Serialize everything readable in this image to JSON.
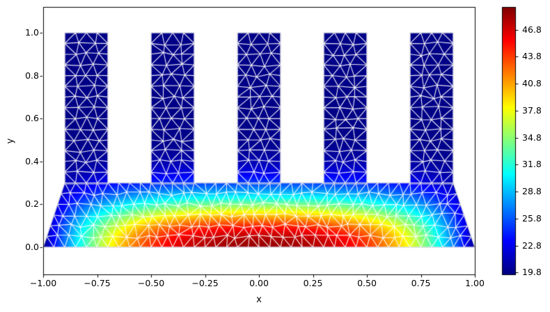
{
  "figure": {
    "background": "#ffffff"
  },
  "chart_data": {
    "type": "heatmap",
    "subtype": "triangular finite-element mesh with scalar field (tripcolor + triplot)",
    "title": "",
    "xlabel": "x",
    "ylabel": "y",
    "xlim": [
      -1.0,
      1.0
    ],
    "ylim": [
      -0.13,
      1.12
    ],
    "grid": false,
    "x_ticks": [
      -1.0,
      -0.75,
      -0.5,
      -0.25,
      0.0,
      0.25,
      0.5,
      0.75,
      1.0
    ],
    "x_tick_labels": [
      "−1.00",
      "−0.75",
      "−0.50",
      "−0.25",
      "0.00",
      "0.25",
      "0.50",
      "0.75",
      "1.00"
    ],
    "y_ticks": [
      0.0,
      0.2,
      0.4,
      0.6,
      0.8,
      1.0
    ],
    "y_tick_labels": [
      "0.0",
      "0.2",
      "0.4",
      "0.6",
      "0.8",
      "1.0"
    ],
    "colormap": "jet",
    "mesh_edge_color": "#ffffff",
    "boundary_edge_color": "#c8c8dc",
    "colorbar": {
      "position": "right",
      "vmin": 19.59,
      "vmax": 49.33,
      "ticks": [
        19.8,
        22.8,
        25.8,
        28.8,
        31.8,
        34.8,
        37.8,
        40.8,
        43.8,
        46.8
      ],
      "tick_labels": [
        "19.8",
        "22.8",
        "25.8",
        "28.8",
        "31.8",
        "34.8",
        "37.8",
        "40.8",
        "43.8",
        "46.8"
      ]
    },
    "geometry": {
      "description": "2-D heat-sink cross-section: trapezoidal base plate with five rectangular cooling fins",
      "base_polygon": [
        [
          -1.0,
          0.0
        ],
        [
          1.0,
          0.0
        ],
        [
          0.9,
          0.3
        ],
        [
          -0.9,
          0.3
        ]
      ],
      "fins_x": [
        [
          -0.9,
          -0.7
        ],
        [
          -0.5,
          -0.3
        ],
        [
          -0.1,
          0.1
        ],
        [
          0.3,
          0.5
        ],
        [
          0.7,
          0.9
        ]
      ],
      "fin_bottom_y": 0.3,
      "fin_top_y": 1.0,
      "mesh": {
        "element": "triangle",
        "typical_edge_length": 0.05
      }
    },
    "temperature_field": {
      "min": 19.8,
      "max": 48.5,
      "peak_location": [
        0.0,
        0.0
      ],
      "description": "Hot along the bottom center of the base, cooling outward and upward; fins near ambient (dark blue)",
      "model": "T(x,y) = 19.8 + 28.7 * exp(-(y/0.24)^2.2) * max(0, 1 - |x|^2.7)",
      "bottom_edge_profile_estimate": {
        "x": [
          -1.0,
          -0.9,
          -0.8,
          -0.7,
          -0.6,
          -0.5,
          -0.25,
          0.0,
          0.25,
          0.5,
          0.6,
          0.7,
          0.8,
          0.9,
          1.0
        ],
        "T": [
          19.8,
          27.0,
          33.0,
          39.0,
          43.0,
          46.0,
          48.0,
          48.5,
          48.0,
          46.0,
          43.0,
          39.0,
          33.0,
          27.0,
          19.8
        ]
      },
      "centerline_profile_estimate": {
        "y": [
          0.0,
          0.05,
          0.1,
          0.15,
          0.2,
          0.25,
          0.3,
          0.4,
          0.5,
          1.0
        ],
        "T": [
          48.5,
          45.5,
          42.0,
          38.5,
          34.5,
          30.0,
          25.5,
          21.5,
          20.2,
          19.8
        ]
      }
    }
  }
}
